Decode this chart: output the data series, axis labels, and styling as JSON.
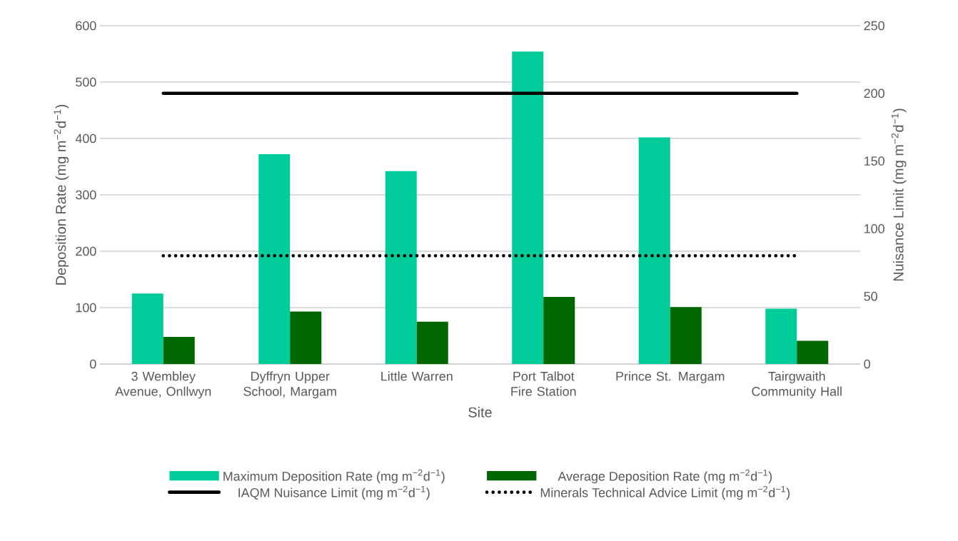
{
  "chart_data": {
    "type": "bar",
    "xlabel": "Site",
    "ylabel": "Deposition Rate (mg m$^{−2}$d$^{−1}$)",
    "y2label": "Nuisance Limit (mg m$^{−2}$d$^{−1}$)",
    "categories": [
      "3 Wembley Avenue, Onllwyn",
      "Dyffryn Upper School, Margam",
      "Little Warren",
      "Port Talbot Fire Station",
      "Prince St. Margam",
      "Tairgwaith Community Hall"
    ],
    "series": [
      {
        "name": "Maximum Deposition Rate (mg m$^{−2}$d$^{−1}$)",
        "color": "#00cc99",
        "values": [
          125,
          372,
          342,
          554,
          402,
          98
        ]
      },
      {
        "name": "Average Deposition Rate (mg m$^{−2}$d$^{−1}$)",
        "color": "#006600",
        "values": [
          48,
          93,
          75,
          119,
          101,
          41
        ]
      },
      {
        "name": "IAQM Nuisance Limit (mg m$^{−2}$d$^{−1}$)",
        "type": "line",
        "axis": "y2",
        "color": "#000000",
        "line_style": "solid",
        "values": [
          200,
          200,
          200,
          200,
          200,
          200
        ]
      },
      {
        "name": "Minerals Technical Advice Limit (mg m$^{−2}$d$^{−1}$)",
        "type": "line",
        "axis": "y2",
        "color": "#000000",
        "line_style": "dotted",
        "values": [
          80,
          80,
          80,
          80,
          80,
          80
        ]
      }
    ],
    "ylim": [
      0,
      600
    ],
    "yticks": [
      0,
      100,
      200,
      300,
      400,
      500,
      600
    ],
    "y2lim": [
      0,
      250
    ],
    "y2ticks": [
      0,
      50,
      100,
      150,
      200,
      250
    ],
    "grid": "y",
    "legend": "bottom"
  }
}
